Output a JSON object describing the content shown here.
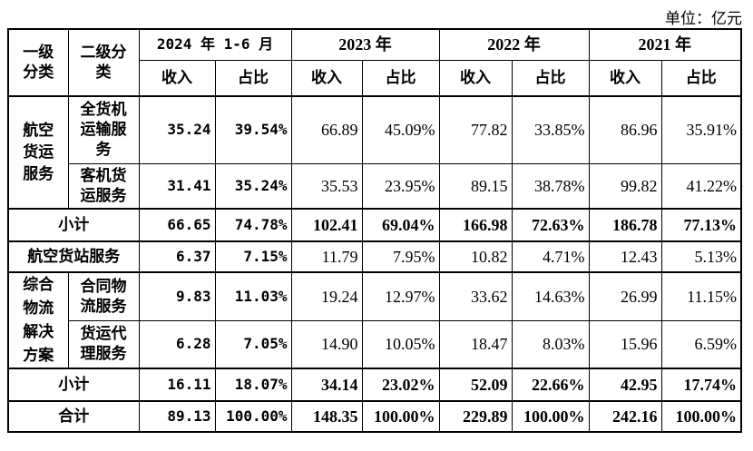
{
  "unit_label": "单位：亿元",
  "header": {
    "col1": "一级分类",
    "col2": "二级分类",
    "periods": [
      "2024 年 1-6 月",
      "2023 年",
      "2022 年",
      "2021 年"
    ],
    "revenue": "收入",
    "share": "占比"
  },
  "groups": {
    "air_cargo": "航空货运服务",
    "integrated": "综合物流解决方案"
  },
  "rows": {
    "freighter": {
      "name": "全货机运输服务",
      "v": [
        "35.24",
        "39.54%",
        "66.89",
        "45.09%",
        "77.82",
        "33.85%",
        "86.96",
        "35.91%"
      ]
    },
    "belly": {
      "name": "客机货运服务",
      "v": [
        "31.41",
        "35.24%",
        "35.53",
        "23.95%",
        "89.15",
        "38.78%",
        "99.82",
        "41.22%"
      ]
    },
    "subtotal1": {
      "name": "小计",
      "v": [
        "66.65",
        "74.78%",
        "102.41",
        "69.04%",
        "166.98",
        "72.63%",
        "186.78",
        "77.13%"
      ]
    },
    "terminal": {
      "name": "航空货站服务",
      "v": [
        "6.37",
        "7.15%",
        "11.79",
        "7.95%",
        "10.82",
        "4.71%",
        "12.43",
        "5.13%"
      ]
    },
    "contract": {
      "name": "合同物流服务",
      "v": [
        "9.83",
        "11.03%",
        "19.24",
        "12.97%",
        "33.62",
        "14.63%",
        "26.99",
        "11.15%"
      ]
    },
    "forwarding": {
      "name": "货运代理服务",
      "v": [
        "6.28",
        "7.05%",
        "14.90",
        "10.05%",
        "18.47",
        "8.03%",
        "15.96",
        "6.59%"
      ]
    },
    "subtotal2": {
      "name": "小计",
      "v": [
        "16.11",
        "18.07%",
        "34.14",
        "23.02%",
        "52.09",
        "22.66%",
        "42.95",
        "17.74%"
      ]
    },
    "total": {
      "name": "合计",
      "v": [
        "89.13",
        "100.00%",
        "148.35",
        "100.00%",
        "229.89",
        "100.00%",
        "242.16",
        "100.00%"
      ]
    }
  }
}
